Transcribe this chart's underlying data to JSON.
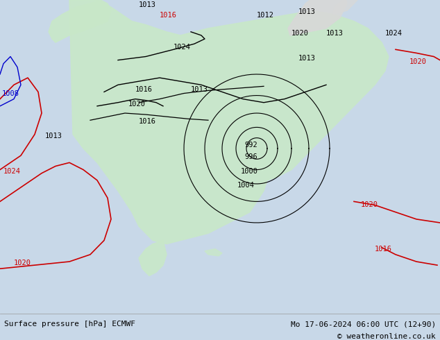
{
  "title_left": "Surface pressure [hPa] ECMWF",
  "title_right": "Mo 17-06-2024 06:00 UTC (12+90)",
  "copyright": "© weatheronline.co.uk",
  "bg_color": "#c8d8e8",
  "land_color": "#c8e8c8",
  "fig_width": 6.34,
  "fig_height": 4.9,
  "dpi": 100,
  "bottom_bar_color": "#e8e8e8",
  "text_color_black": "#000000",
  "text_color_blue": "#0000cc",
  "text_color_red": "#cc0000",
  "isobar_black": "#000000",
  "isobar_blue": "#0000cc",
  "isobar_red": "#cc0000",
  "font_size_label": 7.5,
  "font_size_bottom": 8.0
}
